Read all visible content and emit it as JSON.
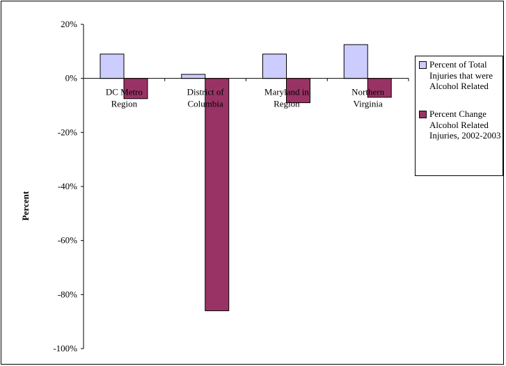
{
  "chart_data": {
    "type": "bar",
    "categories": [
      "DC Metro Region",
      "District of Columbia",
      "Maryland in Region",
      "Northern Virginia"
    ],
    "category_lines": [
      [
        "DC Metro",
        "Region"
      ],
      [
        "District of",
        "Columbia"
      ],
      [
        "Maryland in",
        "Region"
      ],
      [
        "Northern",
        "Virginia"
      ]
    ],
    "series": [
      {
        "name": "Percent of Total Injuries that were Alcohol Related",
        "values": [
          9,
          1.5,
          9,
          12.5
        ],
        "color": "#ccccff"
      },
      {
        "name": "Percent Change Alcohol Related Injuries, 2002-2003",
        "values": [
          -7.5,
          -86,
          -9,
          -7
        ],
        "color": "#993366"
      }
    ],
    "ylabel": "Percent",
    "ylim": [
      -100,
      20
    ],
    "yticks": [
      20,
      0,
      -20,
      -40,
      -60,
      -80,
      -100
    ],
    "ytick_labels": [
      "20%",
      "0%",
      "-20%",
      "-40%",
      "-60%",
      "-80%",
      "-100%"
    ],
    "grid": false,
    "legend_position": "right"
  }
}
